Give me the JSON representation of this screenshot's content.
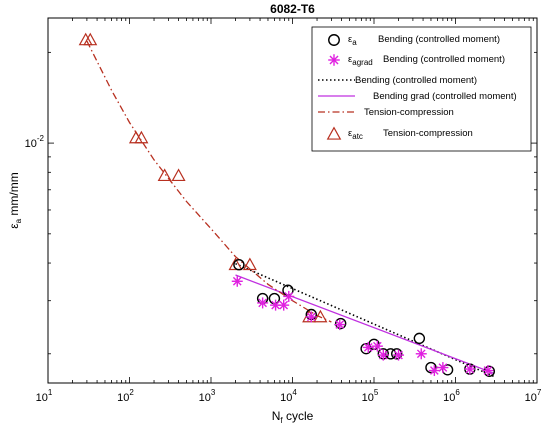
{
  "chart_data": {
    "type": "scatter",
    "title": "6082-T6",
    "xlabel": {
      "base": "N",
      "sub": "f",
      "rest": " cycle"
    },
    "ylabel": {
      "base": "ε",
      "sub": "a",
      "rest": " mm/mm"
    },
    "x_scale": "log",
    "y_scale": "log",
    "xlim": [
      10,
      10000000
    ],
    "ylim": [
      0.0016,
      0.026
    ],
    "x_ticks": [
      {
        "value": 10,
        "base": "10",
        "exp": "1"
      },
      {
        "value": 100,
        "base": "10",
        "exp": "2"
      },
      {
        "value": 1000,
        "base": "10",
        "exp": "3"
      },
      {
        "value": 10000,
        "base": "10",
        "exp": "4"
      },
      {
        "value": 100000,
        "base": "10",
        "exp": "5"
      },
      {
        "value": 1000000,
        "base": "10",
        "exp": "6"
      },
      {
        "value": 10000000,
        "base": "10",
        "exp": "7"
      }
    ],
    "y_ticks": [
      {
        "value": 0.01,
        "base": "10",
        "exp": "-2"
      }
    ],
    "grid": false,
    "legend_position": "top-right",
    "series": [
      {
        "key": "bending",
        "marker": "circle",
        "color": "#000000",
        "legend": {
          "sym": "ε",
          "sub": "a",
          "text": "Bending (controlled moment)"
        },
        "points": [
          [
            2200,
            0.00395
          ],
          [
            4300,
            0.00305
          ],
          [
            6000,
            0.00305
          ],
          [
            8800,
            0.00325
          ],
          [
            17000,
            0.0027
          ],
          [
            39000,
            0.00252
          ],
          [
            80000,
            0.00208
          ],
          [
            100000,
            0.00215
          ],
          [
            130000,
            0.002
          ],
          [
            160000,
            0.002
          ],
          [
            190000,
            0.002
          ],
          [
            360000,
            0.00225
          ],
          [
            500000,
            0.0018
          ],
          [
            800000,
            0.00177
          ],
          [
            1500000,
            0.00178
          ],
          [
            2600000,
            0.00175
          ]
        ]
      },
      {
        "key": "bending_grad",
        "marker": "asterisk",
        "color": "#e020e0",
        "legend": {
          "sym": "ε",
          "sub": "agrad",
          "text": "Bending (controlled moment)"
        },
        "points": [
          [
            2100,
            0.00348
          ],
          [
            4300,
            0.00295
          ],
          [
            6200,
            0.0029
          ],
          [
            7800,
            0.0029
          ],
          [
            9000,
            0.0031
          ],
          [
            17000,
            0.00265
          ],
          [
            38000,
            0.0025
          ],
          [
            85000,
            0.0021
          ],
          [
            110000,
            0.00212
          ],
          [
            130000,
            0.00198
          ],
          [
            200000,
            0.00198
          ],
          [
            380000,
            0.002
          ],
          [
            550000,
            0.00176
          ],
          [
            700000,
            0.0018
          ],
          [
            1500000,
            0.00178
          ],
          [
            2500000,
            0.00176
          ]
        ]
      },
      {
        "key": "tension_compression",
        "marker": "triangle",
        "color": "#b83020",
        "legend": {
          "sym": "ε",
          "sub": "atc",
          "text": "Tension-compression"
        },
        "points": [
          [
            29,
            0.022
          ],
          [
            33,
            0.022
          ],
          [
            120,
            0.0104
          ],
          [
            140,
            0.0104
          ],
          [
            270,
            0.0078
          ],
          [
            400,
            0.0078
          ],
          [
            2000,
            0.00395
          ],
          [
            3000,
            0.00395
          ],
          [
            16000,
            0.00265
          ],
          [
            22000,
            0.00265
          ]
        ]
      }
    ],
    "fits": [
      {
        "key": "bending_fit",
        "style": "dotted",
        "color": "#000000",
        "legend": {
          "text": "Bending (controlled moment)"
        },
        "points": [
          [
            2000,
            0.00398
          ],
          [
            3000000,
            0.00168
          ]
        ]
      },
      {
        "key": "bending_grad_fit",
        "style": "solid",
        "color": "#c030e0",
        "legend": {
          "text": "Bending grad (controlled moment)"
        },
        "points": [
          [
            2000,
            0.00365
          ],
          [
            3000000,
            0.00172
          ]
        ]
      },
      {
        "key": "tension_compression_fit",
        "style": "dashdot",
        "color": "#b83020",
        "legend": {
          "text": "Tension-compression"
        },
        "points": [
          [
            30,
            0.0218
          ],
          [
            60,
            0.015
          ],
          [
            100,
            0.0117
          ],
          [
            200,
            0.0088
          ],
          [
            500,
            0.0064
          ],
          [
            1000,
            0.0052
          ],
          [
            2000,
            0.0042
          ],
          [
            5000,
            0.0034
          ],
          [
            10000,
            0.003
          ],
          [
            20000,
            0.00268
          ],
          [
            30000,
            0.00255
          ]
        ]
      }
    ]
  }
}
